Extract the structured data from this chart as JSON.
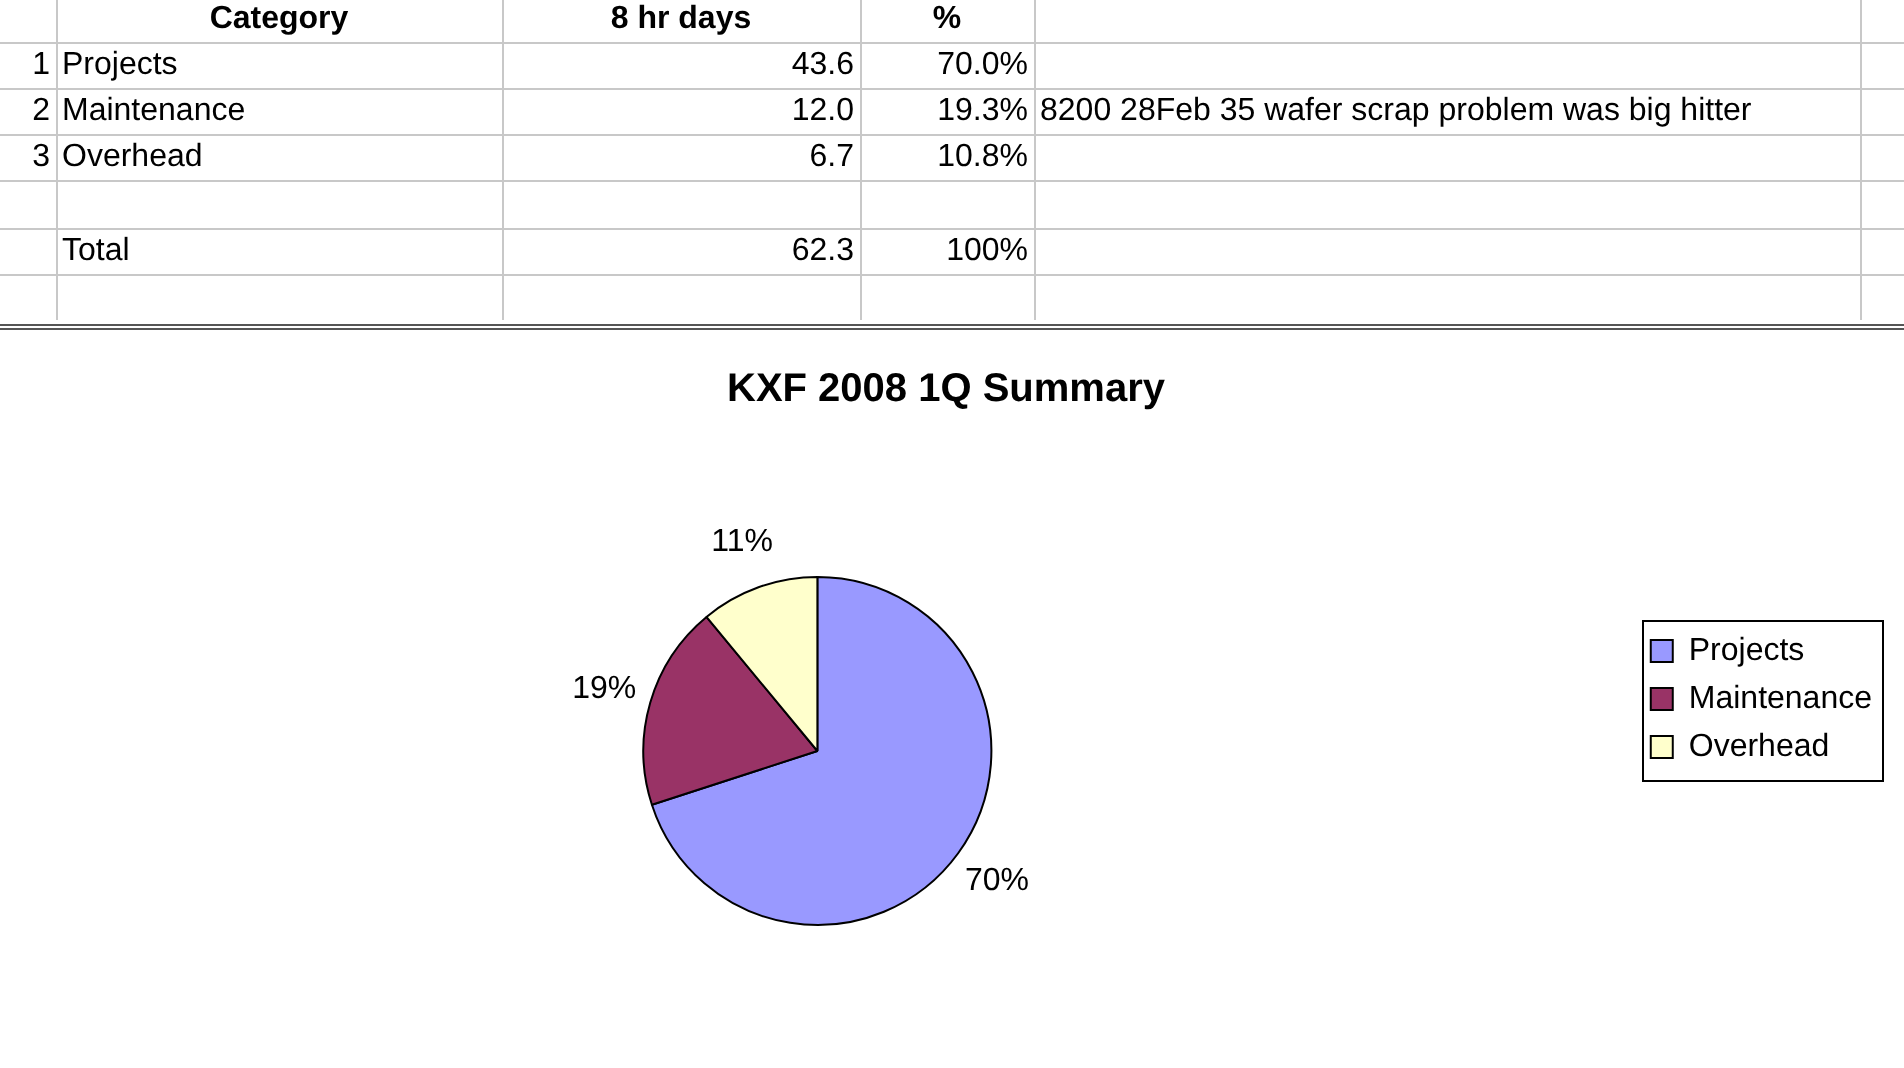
{
  "chart_data": {
    "type": "pie",
    "title": "KXF 2008 1Q Summary",
    "categories": [
      "Projects",
      "Maintenance",
      "Overhead"
    ],
    "values": [
      70,
      19,
      11
    ],
    "value_labels": [
      "70%",
      "19%",
      "11%"
    ],
    "colors": [
      "#9999ff",
      "#993366",
      "#ffffcc"
    ],
    "legend": "right",
    "annotations": [
      "Category",
      "8 hr days",
      "%",
      "1",
      "2",
      "3",
      "43.6",
      "12.0",
      "6.7",
      "70.0%",
      "19.3%",
      "10.8%",
      "Total",
      "62.3",
      "100%",
      "8200 28Feb 35 wafer scrap problem was big hitter"
    ]
  }
}
